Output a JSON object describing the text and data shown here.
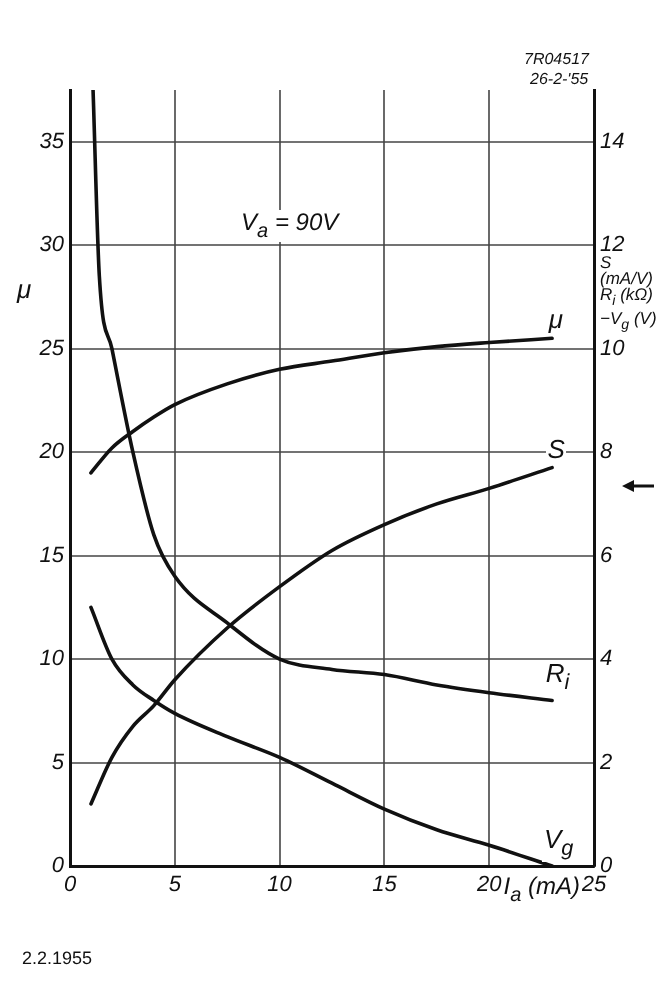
{
  "chart_data": {
    "type": "line",
    "xlabel": "I$_{a}$ (mA)",
    "ylabel": "μ",
    "y2label": "S\n(mA/V)\nR$_{i}$ (kΩ)\n−V$_{g}$ (V)",
    "xlim": [
      0,
      25
    ],
    "xticks": [
      0,
      5,
      10,
      15,
      20,
      25
    ],
    "ylim": [
      0,
      37.5
    ],
    "yticks": [
      0,
      5,
      10,
      15,
      20,
      25,
      30,
      35
    ],
    "y2lim": [
      0,
      15
    ],
    "y2ticks": [
      0,
      2,
      4,
      6,
      8,
      10,
      12,
      14
    ],
    "grid": true,
    "legend": false,
    "marker": "none",
    "line_style": "solid",
    "annotations": [
      "V$_{a}$ = 90V",
      "7R04517",
      "26-2-'55",
      "2.2.1955"
    ],
    "series": [
      {
        "name": "μ",
        "color": "#111111",
        "x": [
          1,
          2,
          3,
          4,
          5,
          7.5,
          10,
          12.5,
          15,
          17.5,
          20,
          23
        ],
        "values": [
          19,
          20.2,
          21,
          21.7,
          22.3,
          23.3,
          24,
          24.4,
          24.8,
          25.1,
          25.3,
          25.5
        ]
      },
      {
        "name": "S",
        "color": "#111111",
        "axis": "y2",
        "x": [
          1,
          2,
          3,
          4,
          5,
          7.5,
          10,
          12.5,
          15,
          17.5,
          20,
          23
        ],
        "values": [
          1.2,
          2.1,
          2.7,
          3.1,
          3.6,
          4.6,
          5.4,
          6.1,
          6.6,
          7,
          7.3,
          7.7
        ]
      },
      {
        "name": "R$_{i}$",
        "color": "#111111",
        "axis": "y2",
        "x": [
          1.1,
          1.4,
          2,
          3,
          4,
          5,
          7.5,
          10,
          12.5,
          15,
          17.5,
          20,
          23
        ],
        "values": [
          15,
          11.4,
          10,
          8,
          6.4,
          5.6,
          4.7,
          4.0,
          3.8,
          3.7,
          3.5,
          3.35,
          3.2
        ]
      },
      {
        "name": "V$_{g}$",
        "color": "#111111",
        "axis": "y2",
        "x": [
          1,
          2,
          3,
          4,
          5,
          7.5,
          10,
          12.5,
          15,
          17.5,
          20,
          23
        ],
        "values": [
          5,
          4,
          3.5,
          3.2,
          2.95,
          2.5,
          2.1,
          1.6,
          1.1,
          0.7,
          0.4,
          0
        ]
      }
    ]
  }
}
